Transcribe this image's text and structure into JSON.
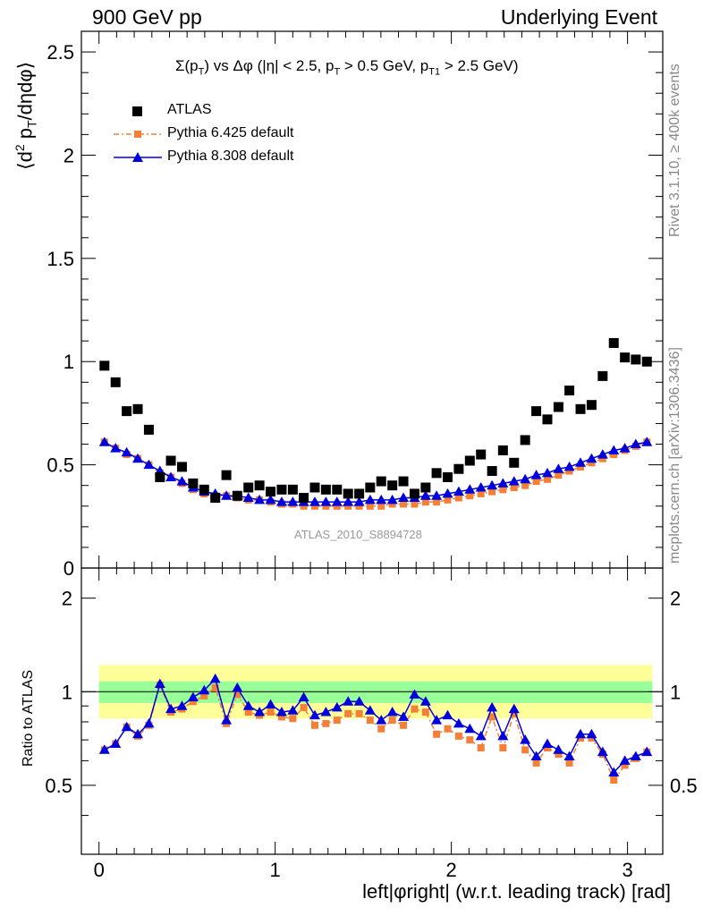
{
  "header": {
    "left": "900 GeV pp",
    "right": "Underlying Event"
  },
  "side_labels": {
    "rivet": "Rivet 3.1.10, ≥ 400k events",
    "mcplots": "mcplots.cern.ch [arXiv:1306.3436]"
  },
  "plot": {
    "title_html": "&Sigma;(p<sub>T</sub>) vs &Delta;&phi; (|&eta;| &lt; 2.5, p<sub>T</sub> &gt; 0.5 GeV, p<sub>T1</sub> &gt; 2.5 GeV)",
    "ylabel_html": "&lang;d<sup>2</sup> p<sub>T</sub>/d&eta;d&phi;&rang;",
    "analysis_tag": "ATLAS_2010_S8894728",
    "ratio_ylabel": "Ratio to ATLAS",
    "xlabel": "left|φright| (w.r.t. leading track) [rad]"
  },
  "legend": {
    "atlas": "ATLAS",
    "pythia6": "Pythia 6.425 default",
    "pythia8": "Pythia 8.308 default"
  },
  "colors": {
    "atlas": "#000000",
    "pythia6": "#f47f37",
    "pythia8": "#0000dd",
    "band_outer": "#ffff99",
    "band_inner": "#99ff99"
  },
  "chart_data": [
    {
      "type": "scatter",
      "title": "Σ(pT) vs Δφ (|η| < 2.5, pT > 0.5 GeV, pT1 > 2.5 GeV)",
      "xlabel": "left|φright| (w.r.t. leading track) [rad]",
      "ylabel": "⟨d² pT/dηdφ⟩",
      "xlim": [
        -0.1,
        3.2
      ],
      "ylim": [
        0,
        2.6
      ],
      "xticks": [
        0,
        1,
        2,
        3
      ],
      "yticks": [
        0,
        0.5,
        1,
        1.5,
        2,
        2.5
      ],
      "ytick_labels": [
        "0",
        "0.5",
        "1",
        "1.5",
        "2",
        "2.5"
      ],
      "x": [
        0.031,
        0.094,
        0.157,
        0.22,
        0.283,
        0.346,
        0.408,
        0.471,
        0.534,
        0.597,
        0.66,
        0.723,
        0.785,
        0.848,
        0.911,
        0.974,
        1.037,
        1.1,
        1.162,
        1.225,
        1.288,
        1.351,
        1.414,
        1.477,
        1.539,
        1.602,
        1.665,
        1.728,
        1.791,
        1.854,
        1.916,
        1.979,
        2.042,
        2.105,
        2.168,
        2.231,
        2.293,
        2.356,
        2.419,
        2.482,
        2.545,
        2.608,
        2.67,
        2.733,
        2.796,
        2.859,
        2.922,
        2.985,
        3.047,
        3.11
      ],
      "series": [
        {
          "name": "ATLAS",
          "marker": "square",
          "values": [
            0.98,
            0.9,
            0.76,
            0.77,
            0.67,
            0.44,
            0.52,
            0.49,
            0.41,
            0.38,
            0.34,
            0.45,
            0.35,
            0.39,
            0.4,
            0.37,
            0.38,
            0.38,
            0.34,
            0.39,
            0.38,
            0.38,
            0.36,
            0.36,
            0.39,
            0.42,
            0.4,
            0.42,
            0.36,
            0.39,
            0.46,
            0.44,
            0.48,
            0.52,
            0.55,
            0.47,
            0.57,
            0.51,
            0.62,
            0.76,
            0.72,
            0.78,
            0.86,
            0.77,
            0.79,
            0.93,
            1.09,
            1.02,
            1.01,
            1.0
          ]
        },
        {
          "name": "Pythia 6.425 default",
          "marker": "square",
          "values": [
            0.61,
            0.58,
            0.55,
            0.53,
            0.5,
            0.46,
            0.44,
            0.41,
            0.38,
            0.36,
            0.35,
            0.35,
            0.34,
            0.33,
            0.33,
            0.32,
            0.31,
            0.31,
            0.3,
            0.3,
            0.3,
            0.3,
            0.3,
            0.3,
            0.3,
            0.3,
            0.31,
            0.31,
            0.31,
            0.32,
            0.32,
            0.33,
            0.34,
            0.35,
            0.36,
            0.37,
            0.38,
            0.39,
            0.4,
            0.42,
            0.43,
            0.45,
            0.47,
            0.49,
            0.51,
            0.53,
            0.55,
            0.57,
            0.59,
            0.61
          ]
        },
        {
          "name": "Pythia 8.308 default",
          "marker": "triangle",
          "values": [
            0.61,
            0.58,
            0.56,
            0.53,
            0.5,
            0.47,
            0.44,
            0.42,
            0.39,
            0.37,
            0.36,
            0.35,
            0.35,
            0.34,
            0.33,
            0.33,
            0.32,
            0.32,
            0.32,
            0.32,
            0.32,
            0.32,
            0.32,
            0.32,
            0.33,
            0.33,
            0.33,
            0.34,
            0.34,
            0.35,
            0.35,
            0.36,
            0.37,
            0.38,
            0.39,
            0.4,
            0.41,
            0.42,
            0.43,
            0.45,
            0.46,
            0.48,
            0.49,
            0.51,
            0.53,
            0.55,
            0.57,
            0.58,
            0.6,
            0.61
          ]
        }
      ]
    },
    {
      "type": "line",
      "ylabel": "Ratio to ATLAS",
      "xlabel": "left|φright| (w.r.t. leading track) [rad]",
      "xlim": [
        -0.1,
        3.2
      ],
      "ylim": [
        0.3,
        2.5
      ],
      "log_y": true,
      "xticks": [
        0,
        1,
        2,
        3
      ],
      "yticks": [
        0.5,
        1,
        2
      ],
      "ytick_labels": [
        "0.5",
        "1",
        "2"
      ],
      "reference_line": 1,
      "band_inner": [
        0.92,
        1.08
      ],
      "band_outer": [
        0.82,
        1.22
      ],
      "x": [
        0.031,
        0.094,
        0.157,
        0.22,
        0.283,
        0.346,
        0.408,
        0.471,
        0.534,
        0.597,
        0.66,
        0.723,
        0.785,
        0.848,
        0.911,
        0.974,
        1.037,
        1.1,
        1.162,
        1.225,
        1.288,
        1.351,
        1.414,
        1.477,
        1.539,
        1.602,
        1.665,
        1.728,
        1.791,
        1.854,
        1.916,
        1.979,
        2.042,
        2.105,
        2.168,
        2.231,
        2.293,
        2.356,
        2.419,
        2.482,
        2.545,
        2.608,
        2.67,
        2.733,
        2.796,
        2.859,
        2.922,
        2.985,
        3.047,
        3.11
      ],
      "series": [
        {
          "name": "Pythia 6.425 default",
          "values": [
            0.65,
            0.68,
            0.77,
            0.72,
            0.78,
            1.05,
            0.86,
            0.88,
            0.93,
            0.97,
            1.03,
            0.79,
            0.98,
            0.86,
            0.84,
            0.86,
            0.83,
            0.82,
            0.89,
            0.78,
            0.79,
            0.81,
            0.85,
            0.85,
            0.81,
            0.76,
            0.81,
            0.78,
            0.88,
            0.86,
            0.73,
            0.76,
            0.72,
            0.7,
            0.66,
            0.83,
            0.66,
            0.85,
            0.65,
            0.59,
            0.66,
            0.63,
            0.59,
            0.71,
            0.71,
            0.63,
            0.52,
            0.58,
            0.61,
            0.64
          ]
        },
        {
          "name": "Pythia 8.308 default",
          "values": [
            0.65,
            0.68,
            0.77,
            0.73,
            0.79,
            1.06,
            0.88,
            0.9,
            0.96,
            1.01,
            1.1,
            0.81,
            1.03,
            0.9,
            0.86,
            0.91,
            0.86,
            0.87,
            0.96,
            0.84,
            0.86,
            0.89,
            0.93,
            0.93,
            0.87,
            0.81,
            0.86,
            0.83,
            0.98,
            0.93,
            0.81,
            0.84,
            0.79,
            0.76,
            0.72,
            0.89,
            0.72,
            0.88,
            0.7,
            0.62,
            0.68,
            0.65,
            0.62,
            0.73,
            0.73,
            0.64,
            0.55,
            0.6,
            0.62,
            0.64
          ]
        }
      ]
    }
  ]
}
